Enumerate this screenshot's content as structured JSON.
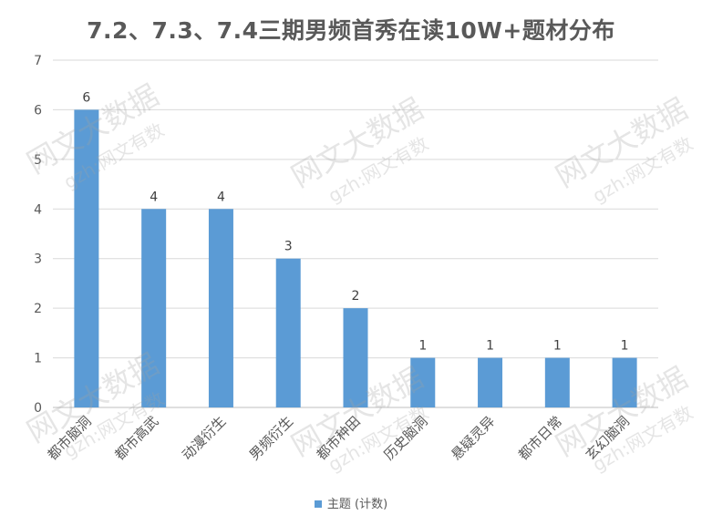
{
  "chart_data": {
    "type": "bar",
    "title": "7.2、7.3、7.4三期男频首秀在读10W+题材分布",
    "categories": [
      "都市脑洞",
      "都市高武",
      "动漫衍生",
      "男频衍生",
      "都市种田",
      "历史脑洞",
      "悬疑灵异",
      "都市日常",
      "玄幻脑洞"
    ],
    "series": [
      {
        "name": "主题 (计数)",
        "values": [
          6,
          4,
          4,
          3,
          2,
          1,
          1,
          1,
          1
        ]
      }
    ],
    "ylim": [
      0,
      7
    ],
    "yticks": [
      0,
      1,
      2,
      3,
      4,
      5,
      6,
      7
    ],
    "grid": true,
    "legend": "bottom",
    "xlabel": "",
    "ylabel": "",
    "bar_color": "#5b9bd5"
  },
  "watermark": {
    "main": "网文大数据",
    "sub": "gzh:网文有数"
  }
}
